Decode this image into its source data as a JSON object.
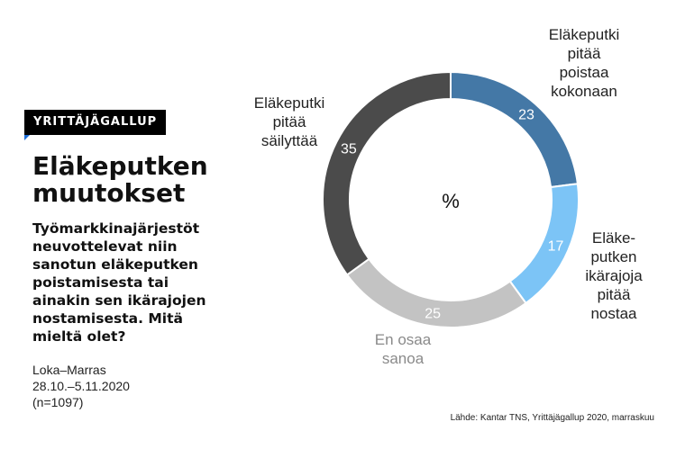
{
  "badge": "YRITTÄJÄGALLUP",
  "title": "Eläkeputken muutokset",
  "question": "Työmarkkinajärjestöt neuvottelevat niin sanotun eläkeputken poistamisesta tai ainakin sen ikärajojen nostamisesta. Mitä mieltä olet?",
  "meta": {
    "period": "Loka–Marras",
    "dates": "28.10.–5.11.2020",
    "sample": "(n=1097)"
  },
  "source": "Lähde: Kantar TNS, Yrittäjägallup 2020, marraskuu",
  "chart_data": {
    "type": "pie",
    "donut": true,
    "center_label": "%",
    "slices": [
      {
        "label": "Eläkeputki pitää poistaa kokonaan",
        "label_lines": [
          "Eläkeputki",
          "pitää",
          "poistaa",
          "kokonaan"
        ],
        "value": 23,
        "color": "#4478a6",
        "label_color": "#222222"
      },
      {
        "label": "Eläkeputken ikärajoja pitää nostaa",
        "label_lines": [
          "Eläke-",
          "putken",
          "ikärajoja",
          "pitää",
          "nostaa"
        ],
        "value": 17,
        "color": "#7cc4f6",
        "label_color": "#222222"
      },
      {
        "label": "En osaa sanoa",
        "label_lines": [
          "En osaa",
          "sanoa"
        ],
        "value": 25,
        "color": "#c3c3c3",
        "label_color": "#8a8a8a"
      },
      {
        "label": "Eläkeputki pitää säilyttää",
        "label_lines": [
          "Eläkeputki",
          "pitää",
          "säilyttää"
        ],
        "value": 35,
        "color": "#4b4b4b",
        "label_color": "#222222"
      }
    ]
  }
}
